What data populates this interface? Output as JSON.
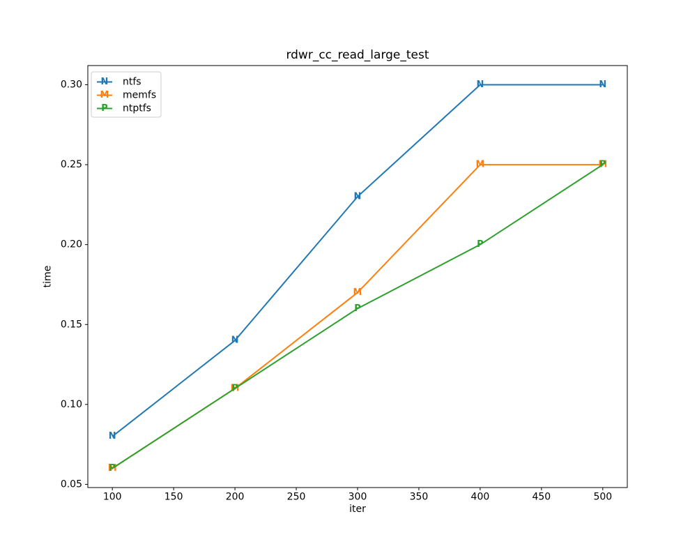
{
  "figure": {
    "background": "#ffffff",
    "text_color": "#000000",
    "spine_color": "#000000",
    "legend_border_color": "#cccccc"
  },
  "chart_data": {
    "type": "line",
    "title": "rdwr_cc_read_large_test",
    "xlabel": "iter",
    "ylabel": "time",
    "x": [
      100,
      200,
      300,
      400,
      500
    ],
    "series": [
      {
        "name": "ntfs",
        "marker": "N",
        "color": "#1f77b4",
        "values": [
          0.08,
          0.14,
          0.23,
          0.3,
          0.3
        ]
      },
      {
        "name": "memfs",
        "marker": "M",
        "color": "#ff7f0e",
        "values": [
          0.06,
          0.11,
          0.17,
          0.25,
          0.25
        ]
      },
      {
        "name": "ntptfs",
        "marker": "P",
        "color": "#2ca02c",
        "values": [
          0.06,
          0.11,
          0.16,
          0.2,
          0.25
        ]
      }
    ],
    "xlim": [
      80,
      520
    ],
    "ylim": [
      0.048,
      0.312
    ],
    "xticks": [
      100,
      150,
      200,
      250,
      300,
      350,
      400,
      450,
      500
    ],
    "yticks": [
      0.05,
      0.1,
      0.15,
      0.2,
      0.25,
      0.3
    ],
    "grid": false,
    "legend_position": "upper left"
  }
}
